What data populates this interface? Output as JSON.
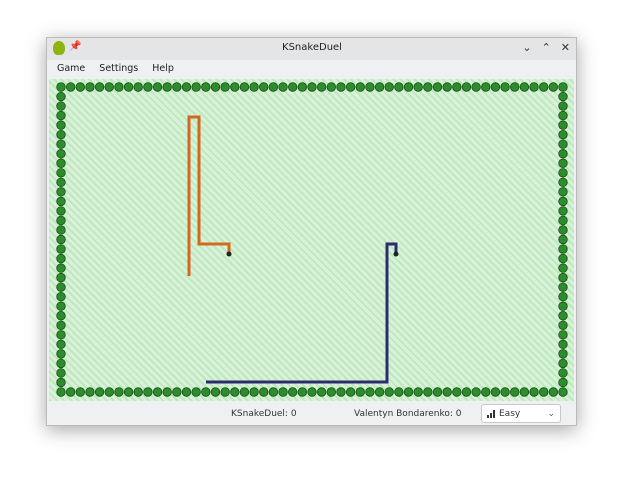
{
  "window": {
    "title": "KSnakeDuel",
    "icons": [
      "app-icon",
      "pin-icon"
    ],
    "controls": [
      "minimize",
      "maximize",
      "close"
    ]
  },
  "menu": [
    "Game",
    "Settings",
    "Help"
  ],
  "status": {
    "player1": "KSnakeDuel: 0",
    "player2": "Valentyn Bondarenko: 0",
    "difficulty": "Easy"
  },
  "colors": {
    "wall": "#2e8b2e",
    "snake1": "#d2691e",
    "snake2": "#2c2c6e"
  }
}
